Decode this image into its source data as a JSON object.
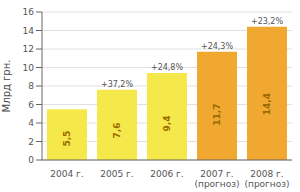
{
  "chart_data": {
    "type": "bar",
    "categories": [
      "2004 г.",
      "2005 г.",
      "2006 г.",
      "2007 г.\n(прогноз)",
      "2008 г.\n(прогноз)"
    ],
    "values": [
      5.5,
      7.6,
      9.4,
      11.7,
      14.4
    ],
    "colors": [
      "#F5E84A",
      "#F5E84A",
      "#F5E84A",
      "#F0A830",
      "#F0A830"
    ],
    "data_labels": true,
    "value_labels": [
      "5,5",
      "7,6",
      "9,4",
      "11,7",
      "14,4"
    ],
    "growth_labels": [
      null,
      "+37,2%",
      "+24,8%",
      "+24,3%",
      "+23,2%"
    ],
    "ylabel": "Млрд грн.",
    "ylim": [
      0,
      16
    ],
    "yticks": [
      0,
      2,
      4,
      6,
      8,
      10,
      12,
      14,
      16
    ],
    "grid": true
  }
}
